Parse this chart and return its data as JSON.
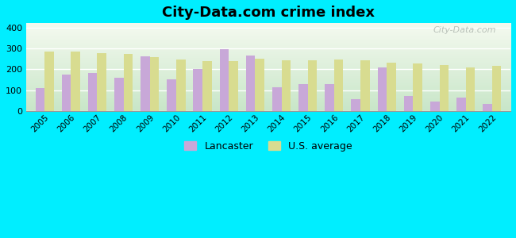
{
  "title": "City-Data.com crime index",
  "years": [
    2005,
    2006,
    2007,
    2008,
    2009,
    2010,
    2011,
    2012,
    2013,
    2014,
    2015,
    2016,
    2017,
    2018,
    2019,
    2020,
    2021,
    2022
  ],
  "lancaster": [
    108,
    173,
    183,
    158,
    262,
    153,
    200,
    295,
    265,
    113,
    127,
    130,
    55,
    210,
    72,
    45,
    65,
    35
  ],
  "us_average": [
    285,
    285,
    278,
    272,
    257,
    245,
    238,
    238,
    250,
    243,
    243,
    247,
    243,
    232,
    227,
    220,
    210,
    215
  ],
  "lancaster_color": "#c8a8d8",
  "us_avg_color": "#d8dc90",
  "background_outer": "#00eeff",
  "background_plot_top": "#f5faf0",
  "background_plot_bottom": "#d8f0d8",
  "ylim": [
    0,
    420
  ],
  "yticks": [
    0,
    100,
    200,
    300,
    400
  ],
  "bar_width": 0.35,
  "legend_lancaster": "Lancaster",
  "legend_us": "U.S. average",
  "watermark": "City-Data.com"
}
